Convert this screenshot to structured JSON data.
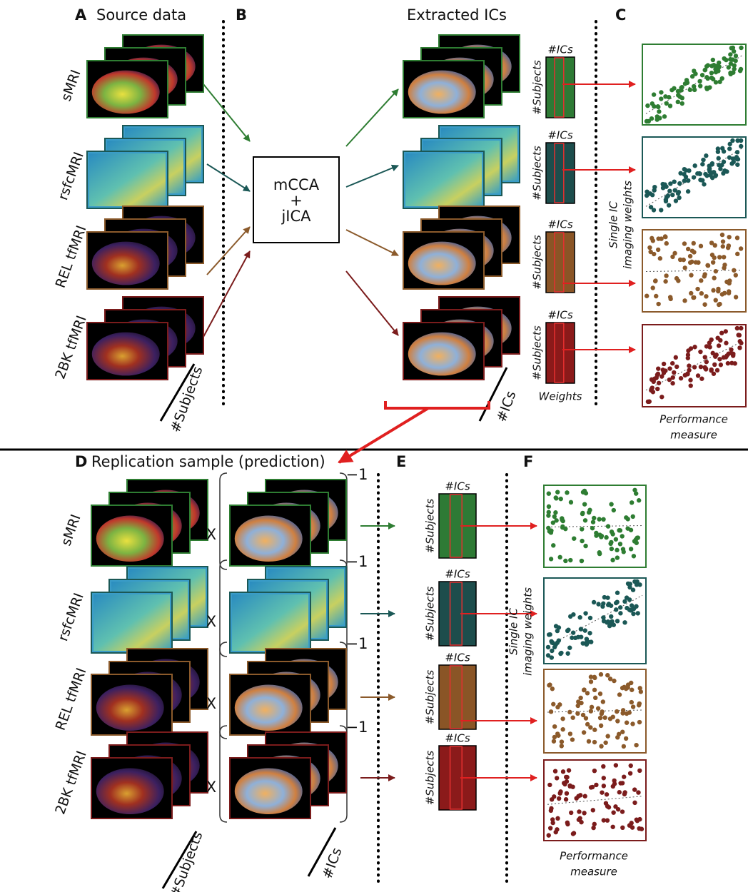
{
  "top": {
    "a_letter": "A",
    "a_title": "Source data",
    "b_letter": "B",
    "extracted_title": "Extracted ICs",
    "c_letter": "C",
    "modalities": [
      "sMRI",
      "rsfcMRI",
      "REL tfMRI",
      "2BK tfMRI"
    ],
    "method": [
      "mCCA",
      "+",
      "jICA"
    ],
    "stack_subjects": "#Subjects",
    "stack_ics": "#ICs",
    "matrices": [
      {
        "cols": "#ICs",
        "rows": "#Subjects"
      },
      {
        "cols": "#ICs",
        "rows": "#Subjects"
      },
      {
        "cols": "#ICs",
        "rows": "#Subjects"
      },
      {
        "cols": "#ICs",
        "rows": "#Subjects"
      }
    ],
    "weights_label": "Weights",
    "y_label": [
      "Single IC",
      "imaging weights"
    ],
    "x_label": [
      "Performance",
      "measure"
    ]
  },
  "bottom": {
    "d_letter": "D",
    "d_title": "Replication sample (prediction)",
    "e_letter": "E",
    "f_letter": "F",
    "modalities": [
      "sMRI",
      "rsfcMRI",
      "REL tfMRI",
      "2BK tfMRI"
    ],
    "times": [
      "X",
      "X",
      "X",
      "X"
    ],
    "inverse": [
      "−1",
      "−1",
      "−1",
      "−1"
    ],
    "stack_subjects": "#Subjects",
    "stack_ics": "#ICs",
    "matrices": [
      {
        "cols": "#ICs",
        "rows": "#Subjects"
      },
      {
        "cols": "#ICs",
        "rows": "#Subjects"
      },
      {
        "cols": "#ICs",
        "rows": "#Subjects"
      },
      {
        "cols": "#ICs",
        "rows": "#Subjects"
      }
    ],
    "y_label": [
      "Single IC",
      "imaging weights"
    ],
    "x_label": [
      "Performance",
      "measure"
    ]
  }
}
